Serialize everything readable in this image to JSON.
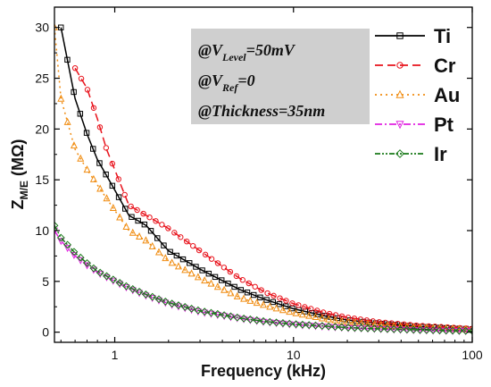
{
  "chart_data": {
    "type": "line",
    "x_scale": "log",
    "xlim": [
      0.46,
      100
    ],
    "ylim": [
      -1,
      32
    ],
    "xlabel": "Frequency (kHz)",
    "ylabel": "Z",
    "ylabel_sub": "M/E",
    "ylabel_unit": "(MΩ)",
    "x_ticks": [
      1,
      10,
      100
    ],
    "x_tick_labels": [
      "1",
      "10",
      "100"
    ],
    "y_ticks": [
      0,
      5,
      10,
      15,
      20,
      25,
      30
    ],
    "y_tick_labels": [
      "0",
      "5",
      "10",
      "15",
      "20",
      "25",
      "30"
    ],
    "grid": false,
    "legend_position": "top-right",
    "annotation": {
      "lines": [
        {
          "prefix": "@V",
          "sub": "Level",
          "suffix": "=50mV"
        },
        {
          "prefix": "@V",
          "sub": "Ref",
          "suffix": "=0"
        },
        {
          "prefix": "@Thickness=35nm",
          "sub": "",
          "suffix": ""
        }
      ]
    },
    "series": [
      {
        "name": "Ti",
        "color": "#000000",
        "dash": "",
        "marker": "square",
        "x": [
          0.5,
          0.6,
          0.7,
          0.8,
          1,
          1.2,
          1.5,
          2,
          3,
          5,
          7,
          10,
          15,
          20,
          30,
          50,
          70,
          100
        ],
        "y": [
          30,
          23,
          19.5,
          17,
          14,
          11.5,
          10.5,
          8,
          6.2,
          4.2,
          3.2,
          2.3,
          1.6,
          1.2,
          0.85,
          0.55,
          0.42,
          0.3
        ]
      },
      {
        "name": "Cr",
        "color": "#e8121b",
        "dash": "9,5",
        "marker": "circle",
        "x": [
          0.6,
          0.7,
          0.8,
          0.9,
          1,
          1.2,
          1.5,
          2,
          3,
          5,
          7,
          10,
          15,
          20,
          30,
          50,
          70,
          100
        ],
        "y": [
          26,
          24,
          21,
          18,
          16,
          12.5,
          11.5,
          10.2,
          8,
          5.3,
          3.9,
          2.8,
          1.9,
          1.45,
          1.0,
          0.65,
          0.5,
          0.35
        ]
      },
      {
        "name": "Au",
        "color": "#f08c10",
        "dash": "2,4",
        "marker": "triangle-up",
        "x": [
          0.46,
          0.5,
          0.6,
          0.7,
          0.8,
          1,
          1.2,
          1.5,
          2,
          3,
          5,
          7,
          10,
          15,
          20,
          30,
          50,
          70,
          100
        ],
        "y": [
          30,
          23,
          18,
          16,
          14.5,
          12,
          10,
          9,
          7,
          5.3,
          3.4,
          2.6,
          1.9,
          1.3,
          1.0,
          0.7,
          0.45,
          0.35,
          0.25
        ]
      },
      {
        "name": "Pt",
        "color": "#e020e0",
        "dash": "8,3,2,3",
        "marker": "triangle-down",
        "x": [
          0.46,
          0.5,
          0.6,
          0.7,
          0.8,
          1,
          1.2,
          1.5,
          2,
          3,
          5,
          7,
          10,
          15,
          20,
          30,
          50,
          70,
          100
        ],
        "y": [
          10,
          9,
          7.5,
          6.6,
          5.9,
          5.0,
          4.3,
          3.6,
          2.8,
          2.0,
          1.35,
          1.0,
          0.75,
          0.55,
          0.42,
          0.32,
          0.2,
          0.15,
          0.1
        ]
      },
      {
        "name": "Ir",
        "color": "#1a7a1a",
        "dash": "6,2,2,2,2,2",
        "marker": "diamond",
        "x": [
          0.46,
          0.5,
          0.6,
          0.7,
          0.8,
          1,
          1.2,
          1.5,
          2,
          3,
          5,
          7,
          10,
          15,
          20,
          30,
          50,
          70,
          100
        ],
        "y": [
          10.5,
          9.3,
          7.8,
          6.8,
          6.0,
          5.1,
          4.4,
          3.7,
          2.9,
          2.1,
          1.4,
          1.05,
          0.8,
          0.6,
          0.45,
          0.34,
          0.22,
          0.16,
          0.12
        ]
      }
    ]
  }
}
